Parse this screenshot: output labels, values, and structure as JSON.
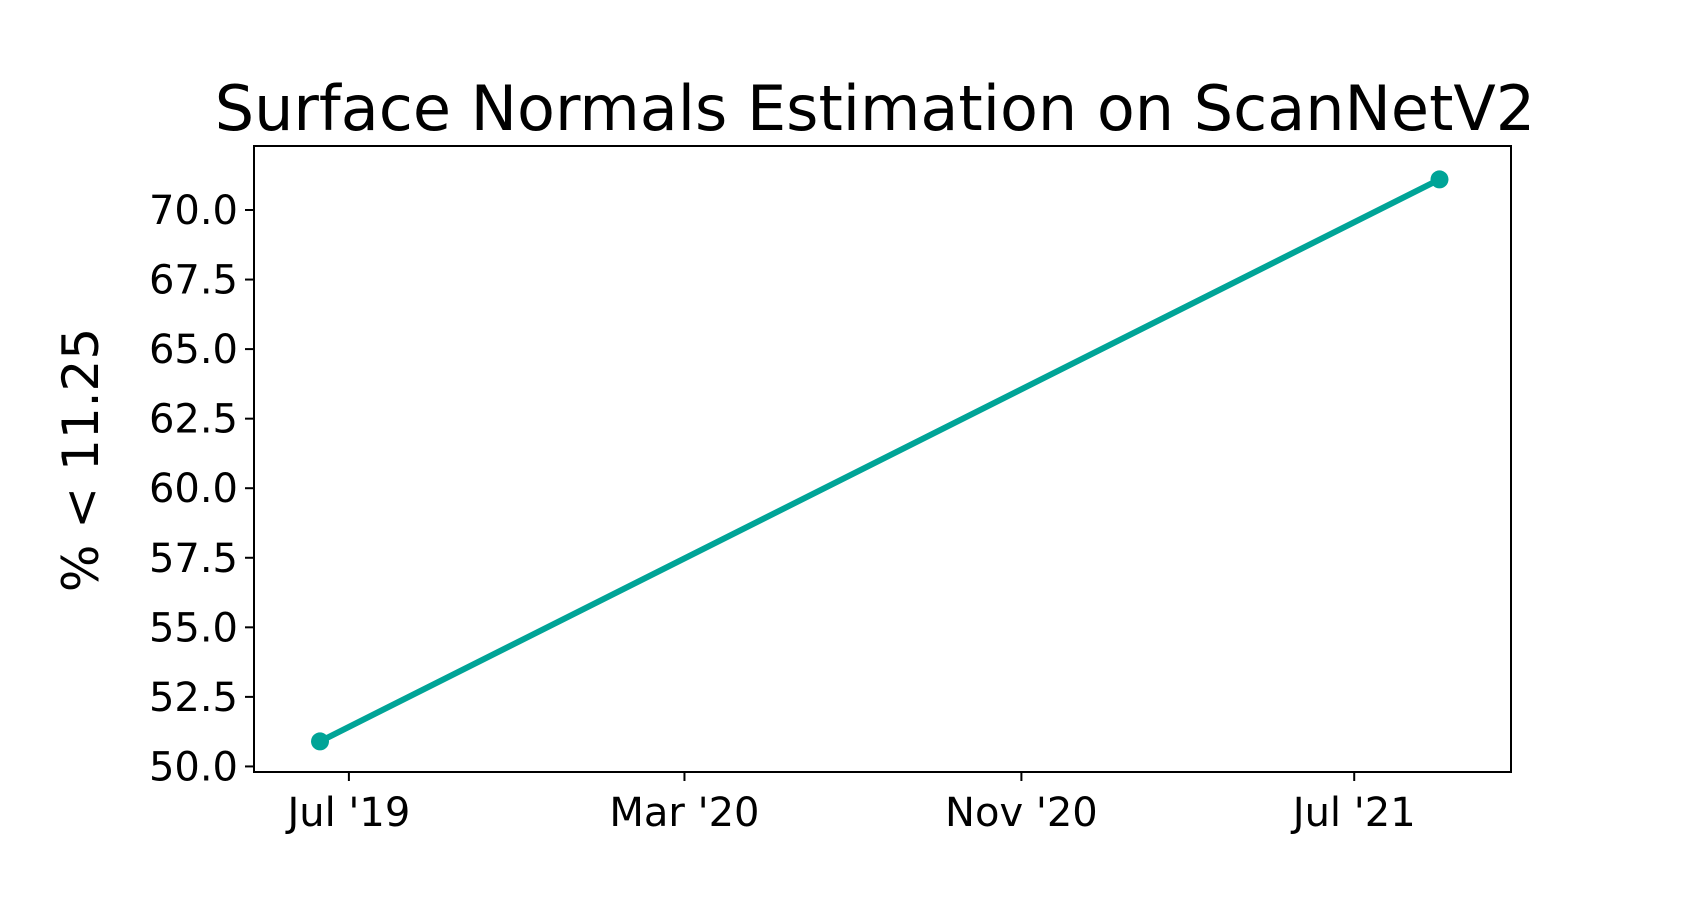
{
  "chart_data": {
    "type": "line",
    "title": "Surface Normals Estimation on ScanNetV2",
    "xlabel": "",
    "ylabel": "% < 11.25",
    "x_ticks": [
      {
        "date": "2019-07-01",
        "label": "Jul '19"
      },
      {
        "date": "2020-03-01",
        "label": "Mar '20"
      },
      {
        "date": "2020-11-01",
        "label": "Nov '20"
      },
      {
        "date": "2021-07-01",
        "label": "Jul '21"
      }
    ],
    "y_ticks": [
      50.0,
      52.5,
      55.0,
      57.5,
      60.0,
      62.5,
      65.0,
      67.5,
      70.0
    ],
    "y_tick_labels": [
      "50.0",
      "52.5",
      "55.0",
      "57.5",
      "60.0",
      "62.5",
      "65.0",
      "67.5",
      "70.0"
    ],
    "xlim": [
      "2019-04-23",
      "2021-10-23"
    ],
    "ylim": [
      49.8,
      72.3
    ],
    "grid": false,
    "series": [
      {
        "color": "#00a497",
        "x": [
          "2019-06-10",
          "2021-09-01"
        ],
        "y": [
          50.9,
          71.1
        ]
      }
    ]
  }
}
